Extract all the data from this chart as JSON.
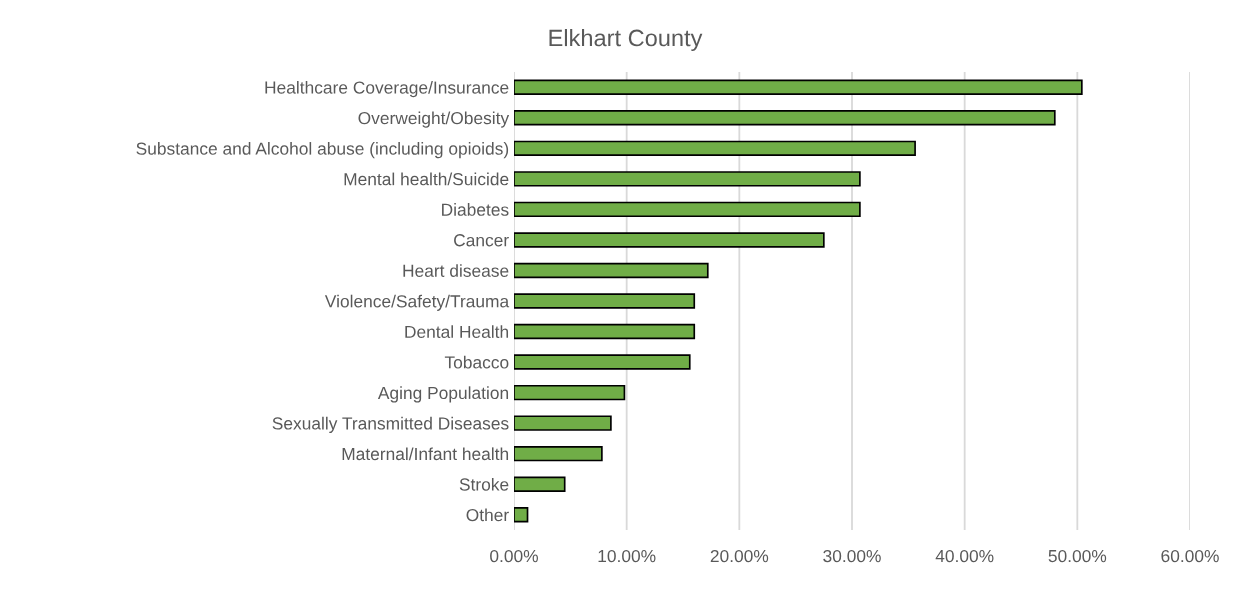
{
  "chart_data": {
    "type": "bar",
    "orientation": "horizontal",
    "title": "Elkhart County",
    "categories": [
      "Healthcare Coverage/Insurance",
      "Overweight/Obesity",
      "Substance and Alcohol abuse (including opioids)",
      "Mental health/Suicide",
      "Diabetes",
      "Cancer",
      "Heart disease",
      "Violence/Safety/Trauma",
      "Dental Health",
      "Tobacco",
      "Aging Population",
      "Sexually Transmitted Diseases",
      "Maternal/Infant health",
      "Stroke",
      "Other"
    ],
    "values": [
      50.4,
      48.0,
      35.6,
      30.7,
      30.7,
      27.5,
      17.2,
      16.0,
      16.0,
      15.6,
      9.8,
      8.6,
      7.8,
      4.5,
      1.2
    ],
    "color": "#70ad47",
    "xlim": [
      0,
      60
    ],
    "xticks": [
      {
        "value": 0,
        "label": "0.00%"
      },
      {
        "value": 10,
        "label": "10.00%"
      },
      {
        "value": 20,
        "label": "20.00%"
      },
      {
        "value": 30,
        "label": "30.00%"
      },
      {
        "value": 40,
        "label": "40.00%"
      },
      {
        "value": 50,
        "label": "50.00%"
      },
      {
        "value": 60,
        "label": "60.00%"
      }
    ],
    "grid": "x"
  }
}
